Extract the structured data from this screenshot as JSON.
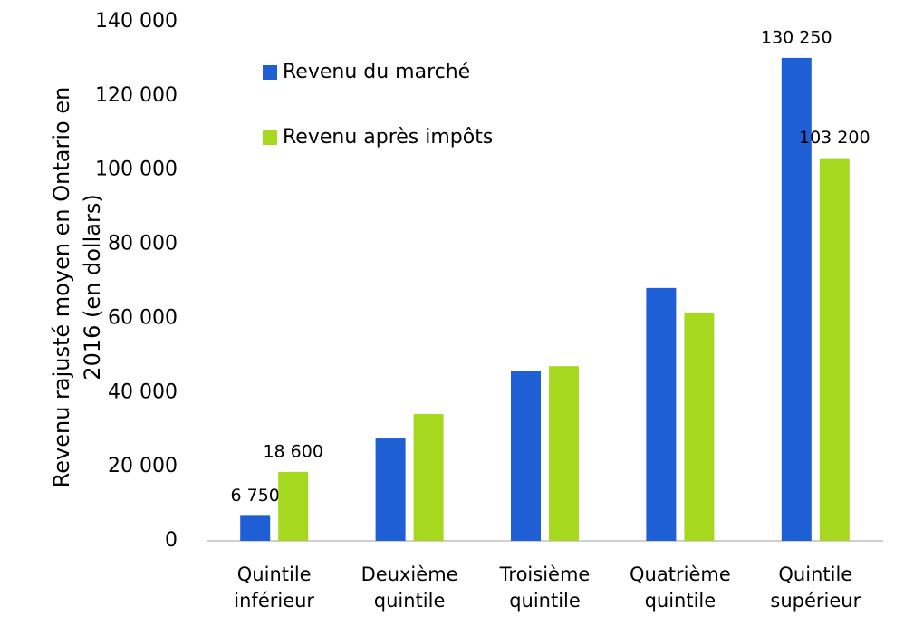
{
  "chart_data": {
    "type": "bar",
    "y_axis_label": "Revenu rajusté moyen en Ontario en 2016 (en dollars)",
    "categories": [
      "Quintile inférieur",
      "Deuxième quintile",
      "Troisième quintile",
      "Quatrième quintile",
      "Quintile supérieur"
    ],
    "series": [
      {
        "name": "Revenu du marché",
        "color": "#1f5fd6",
        "values": [
          6750,
          27600,
          45900,
          68200,
          130250
        ],
        "value_labels": [
          "6 750",
          null,
          null,
          null,
          "130 250"
        ]
      },
      {
        "name": "Revenu après impôts",
        "color": "#a6d820",
        "values": [
          18600,
          34200,
          47100,
          61600,
          103200
        ],
        "value_labels": [
          "18 600",
          null,
          null,
          null,
          "103 200"
        ]
      }
    ],
    "ylim": [
      0,
      140000
    ],
    "yticks": [
      0,
      {
        "value": 20000,
        "label": "20 000"
      },
      {
        "value": 40000,
        "label": "40 000"
      },
      {
        "value": 60000,
        "label": "60 000"
      },
      {
        "value": 80000,
        "label": "80 000"
      },
      {
        "value": 100000,
        "label": "100 000"
      },
      {
        "value": 120000,
        "label": "120 000"
      },
      {
        "value": 140000,
        "label": "140 000"
      }
    ],
    "grid": false,
    "legend": "upper-left"
  }
}
